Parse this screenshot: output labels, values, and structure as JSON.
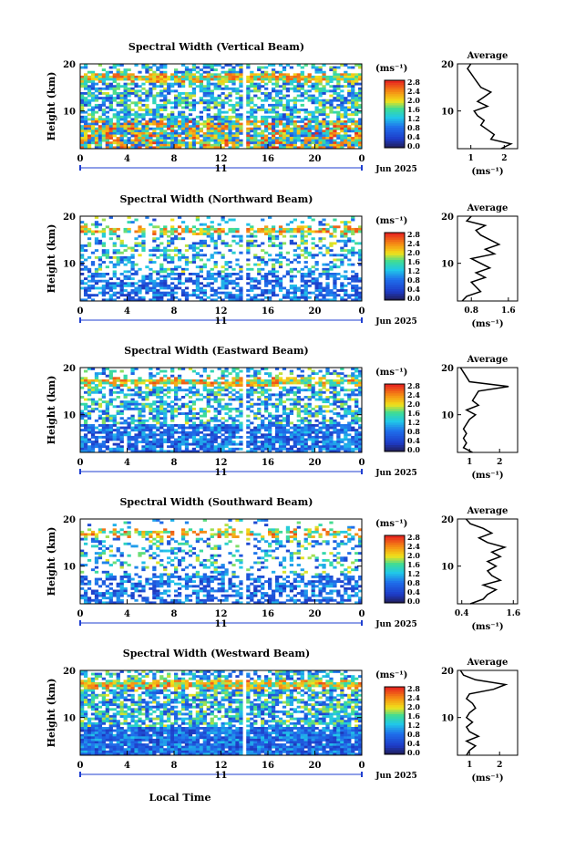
{
  "figure": {
    "xlabel_bottom": "Local Time",
    "date_label": "Jun 2025",
    "day_label": "11",
    "ylabel": "Height (km)",
    "colorbar_unit": "(ms⁻¹)",
    "colorbar_ticks": [
      "0.0",
      "0.4",
      "0.8",
      "1.2",
      "1.6",
      "2.0",
      "2.4",
      "2.8"
    ],
    "avg_title": "Average",
    "avg_xlabel": "(ms⁻¹)",
    "colors": {
      "low": "#202060",
      "mid_low": "#1f4fe0",
      "mid": "#21c9e8",
      "mid_high": "#f2e21a",
      "high": "#e82a1e"
    }
  },
  "chart_data": [
    {
      "type": "heatmap",
      "title": "Spectral Width (Vertical Beam)",
      "xlabel": "Local Time",
      "ylabel": "Height (km)",
      "x_ticks": [
        "0",
        "4",
        "8",
        "12",
        "16",
        "20",
        "0"
      ],
      "y_ticks": [
        "20",
        "10"
      ],
      "xlim": [
        0,
        24
      ],
      "ylim": [
        2,
        20
      ],
      "colorbar": {
        "range": [
          0.0,
          2.8
        ],
        "unit": "ms⁻¹"
      },
      "average": {
        "title": "Average",
        "x_ticks": [
          "1",
          "2"
        ],
        "xlim": [
          0.6,
          2.4
        ],
        "heights": [
          2,
          3,
          4,
          5,
          6,
          7,
          8,
          9,
          10,
          11,
          12,
          13,
          14,
          15,
          16,
          17,
          18,
          19,
          20
        ],
        "values": [
          1.9,
          2.2,
          1.6,
          1.7,
          1.5,
          1.3,
          1.4,
          1.2,
          1.1,
          1.5,
          1.2,
          1.4,
          1.6,
          1.3,
          1.2,
          1.1,
          1.0,
          0.9,
          1.0
        ]
      }
    },
    {
      "type": "heatmap",
      "title": "Spectral Width (Northward Beam)",
      "xlabel": "Local Time",
      "ylabel": "Height (km)",
      "x_ticks": [
        "0",
        "4",
        "8",
        "12",
        "16",
        "20",
        "0"
      ],
      "y_ticks": [
        "20",
        "10"
      ],
      "xlim": [
        0,
        24
      ],
      "ylim": [
        2,
        20
      ],
      "colorbar": {
        "range": [
          0.0,
          2.8
        ],
        "unit": "ms⁻¹"
      },
      "average": {
        "title": "Average",
        "x_ticks": [
          "0.8",
          "1.6"
        ],
        "xlim": [
          0.5,
          1.8
        ],
        "heights": [
          2,
          3,
          4,
          5,
          6,
          7,
          8,
          9,
          10,
          11,
          12,
          13,
          14,
          15,
          16,
          17,
          18,
          19,
          20
        ],
        "values": [
          0.6,
          0.7,
          1.0,
          0.9,
          0.8,
          1.1,
          0.9,
          1.2,
          1.0,
          0.8,
          1.3,
          1.1,
          1.4,
          1.2,
          1.0,
          0.9,
          1.1,
          0.7,
          0.8
        ]
      }
    },
    {
      "type": "heatmap",
      "title": "Spectral Width (Eastward Beam)",
      "xlabel": "Local Time",
      "ylabel": "Height (km)",
      "x_ticks": [
        "0",
        "4",
        "8",
        "12",
        "16",
        "20",
        "0"
      ],
      "y_ticks": [
        "20",
        "10"
      ],
      "xlim": [
        0,
        24
      ],
      "ylim": [
        2,
        20
      ],
      "colorbar": {
        "range": [
          0.0,
          2.8
        ],
        "unit": "ms⁻¹"
      },
      "average": {
        "title": "Average",
        "x_ticks": [
          "1",
          "2"
        ],
        "xlim": [
          0.6,
          2.6
        ],
        "heights": [
          2,
          3,
          4,
          5,
          6,
          7,
          8,
          9,
          10,
          11,
          12,
          13,
          14,
          15,
          16,
          17,
          18,
          19,
          20
        ],
        "values": [
          1.1,
          0.8,
          0.9,
          0.8,
          0.9,
          0.8,
          0.9,
          1.0,
          1.2,
          0.9,
          1.3,
          1.1,
          1.2,
          1.3,
          2.3,
          1.0,
          0.9,
          0.8,
          0.7
        ]
      }
    },
    {
      "type": "heatmap",
      "title": "Spectral Width (Southward Beam)",
      "xlabel": "Local Time",
      "ylabel": "Height (km)",
      "x_ticks": [
        "0",
        "4",
        "8",
        "12",
        "16",
        "20",
        "0"
      ],
      "y_ticks": [
        "20",
        "10"
      ],
      "xlim": [
        0,
        24
      ],
      "ylim": [
        2,
        20
      ],
      "colorbar": {
        "range": [
          0.0,
          2.8
        ],
        "unit": "ms⁻¹"
      },
      "average": {
        "title": "Average",
        "x_ticks": [
          "0.4",
          "1.6"
        ],
        "xlim": [
          0.3,
          1.7
        ],
        "heights": [
          2,
          3,
          4,
          5,
          6,
          7,
          8,
          9,
          10,
          11,
          12,
          13,
          14,
          15,
          16,
          17,
          18,
          19,
          20
        ],
        "values": [
          0.6,
          0.9,
          1.0,
          1.2,
          0.9,
          1.3,
          1.1,
          1.0,
          1.2,
          1.0,
          1.3,
          1.1,
          1.4,
          1.0,
          0.8,
          1.1,
          0.9,
          0.6,
          0.5
        ]
      }
    },
    {
      "type": "heatmap",
      "title": "Spectral Width (Westward Beam)",
      "xlabel": "Local Time",
      "ylabel": "Height (km)",
      "x_ticks": [
        "0",
        "4",
        "8",
        "12",
        "16",
        "20",
        "0"
      ],
      "y_ticks": [
        "20",
        "10"
      ],
      "xlim": [
        0,
        24
      ],
      "ylim": [
        2,
        20
      ],
      "colorbar": {
        "range": [
          0.0,
          2.8
        ],
        "unit": "ms⁻¹"
      },
      "average": {
        "title": "Average",
        "x_ticks": [
          "1",
          "2"
        ],
        "xlim": [
          0.6,
          2.6
        ],
        "heights": [
          2,
          3,
          4,
          5,
          6,
          7,
          8,
          9,
          10,
          11,
          12,
          13,
          14,
          15,
          16,
          17,
          18,
          19,
          20
        ],
        "values": [
          0.9,
          1.0,
          1.2,
          0.9,
          1.3,
          1.0,
          0.9,
          1.1,
          0.9,
          1.0,
          1.2,
          1.1,
          0.9,
          1.0,
          1.8,
          2.2,
          1.2,
          0.8,
          0.7
        ]
      }
    }
  ]
}
